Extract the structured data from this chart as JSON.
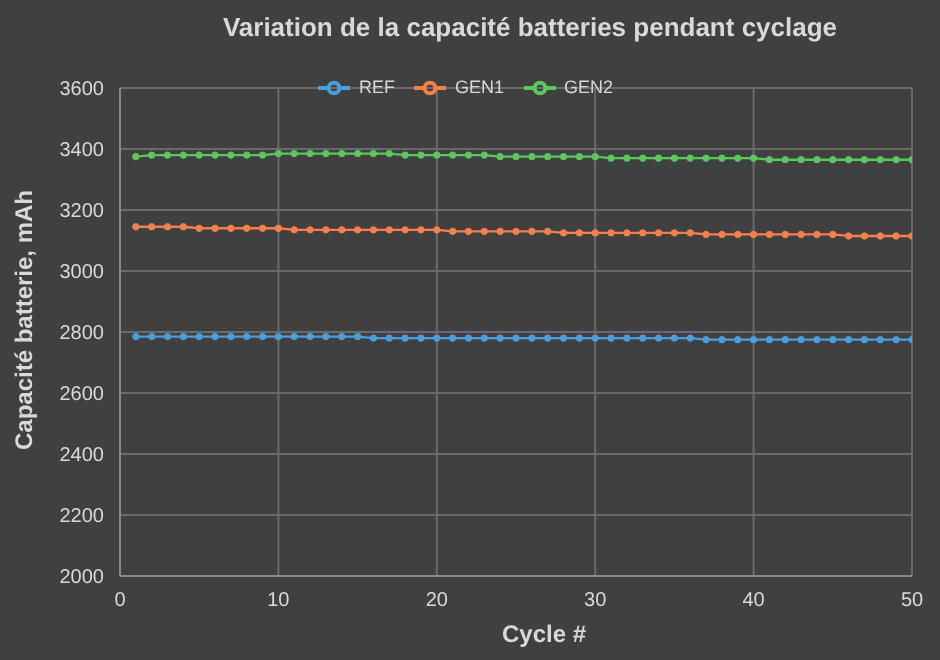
{
  "chart_data": {
    "type": "line",
    "title": "Variation de la capacité batteries pendant cyclage",
    "xlabel": "Cycle #",
    "ylabel": "Capacité batterie, mAh",
    "x": [
      1,
      2,
      3,
      4,
      5,
      6,
      7,
      8,
      9,
      10,
      11,
      12,
      13,
      14,
      15,
      16,
      17,
      18,
      19,
      20,
      21,
      22,
      23,
      24,
      25,
      26,
      27,
      28,
      29,
      30,
      31,
      32,
      33,
      34,
      35,
      36,
      37,
      38,
      39,
      40,
      41,
      42,
      43,
      44,
      45,
      46,
      47,
      48,
      49,
      50
    ],
    "series": [
      {
        "name": "REF",
        "color": "#4a9fd8",
        "values": [
          2785,
          2785,
          2785,
          2785,
          2785,
          2785,
          2785,
          2785,
          2785,
          2785,
          2785,
          2785,
          2785,
          2785,
          2785,
          2780,
          2780,
          2780,
          2780,
          2780,
          2780,
          2780,
          2780,
          2780,
          2780,
          2780,
          2780,
          2780,
          2780,
          2780,
          2780,
          2780,
          2780,
          2780,
          2780,
          2780,
          2775,
          2775,
          2775,
          2775,
          2775,
          2775,
          2775,
          2775,
          2775,
          2775,
          2775,
          2775,
          2775,
          2775
        ]
      },
      {
        "name": "GEN1",
        "color": "#f0824a",
        "values": [
          3145,
          3145,
          3145,
          3145,
          3140,
          3140,
          3140,
          3140,
          3140,
          3140,
          3135,
          3135,
          3135,
          3135,
          3135,
          3135,
          3135,
          3135,
          3135,
          3135,
          3130,
          3130,
          3130,
          3130,
          3130,
          3130,
          3130,
          3125,
          3125,
          3125,
          3125,
          3125,
          3125,
          3125,
          3125,
          3125,
          3120,
          3120,
          3120,
          3120,
          3120,
          3120,
          3120,
          3120,
          3120,
          3115,
          3115,
          3115,
          3115,
          3115
        ]
      },
      {
        "name": "GEN2",
        "color": "#5cc85c",
        "values": [
          3375,
          3380,
          3380,
          3380,
          3380,
          3380,
          3380,
          3380,
          3380,
          3385,
          3385,
          3385,
          3385,
          3385,
          3385,
          3385,
          3385,
          3380,
          3380,
          3380,
          3380,
          3380,
          3380,
          3375,
          3375,
          3375,
          3375,
          3375,
          3375,
          3375,
          3370,
          3370,
          3370,
          3370,
          3370,
          3370,
          3370,
          3370,
          3370,
          3370,
          3365,
          3365,
          3365,
          3365,
          3365,
          3365,
          3365,
          3365,
          3365,
          3365
        ]
      }
    ],
    "xlim": [
      0,
      50
    ],
    "xticks": [
      0,
      10,
      20,
      30,
      40,
      50
    ],
    "ylim": [
      2000,
      3600
    ],
    "yticks": [
      2000,
      2200,
      2400,
      2600,
      2800,
      3000,
      3200,
      3400,
      3600
    ],
    "grid": true,
    "legend": "top",
    "marker": "circle",
    "line_style": "solid"
  }
}
